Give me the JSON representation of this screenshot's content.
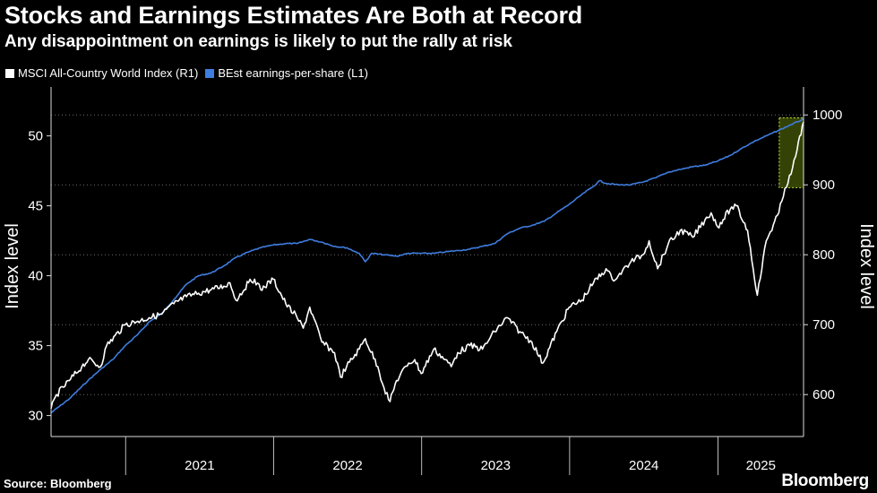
{
  "title": "Stocks and Earnings Estimates Are Both at Record",
  "subtitle": "Any disappointment on earnings is likely to put the rally at risk",
  "source": "Source: Bloomberg",
  "brand": "Bloomberg",
  "colors": {
    "background": "#000000",
    "msci": "#ffffff",
    "eps": "#3f7de0",
    "highlight_fill": "#3a4a06",
    "highlight_border": "#c6e33c",
    "grid": "#6d6d6d"
  },
  "chart_data": {
    "type": "line",
    "x_range": [
      "2020-07-01",
      "2025-07-31"
    ],
    "x_ticks": [
      "2021",
      "2022",
      "2023",
      "2024",
      "2025"
    ],
    "left_axis": {
      "label": "Index level",
      "ticks": [
        30,
        35,
        40,
        45,
        50
      ],
      "range": [
        28.5,
        53.5
      ]
    },
    "right_axis": {
      "label": "Index level",
      "ticks": [
        600,
        700,
        800,
        900,
        1000
      ],
      "range": [
        540,
        1040
      ]
    },
    "legend_position": "top-left",
    "series": [
      {
        "name": "MSCI All-Country World Index (R1)",
        "axis": "right",
        "color": "#ffffff",
        "points": [
          [
            "2020-07-01",
            580
          ],
          [
            "2020-07-15",
            600
          ],
          [
            "2020-08-15",
            620
          ],
          [
            "2020-09-15",
            640
          ],
          [
            "2020-10-01",
            650
          ],
          [
            "2020-10-31",
            640
          ],
          [
            "2020-11-15",
            670
          ],
          [
            "2020-12-31",
            700
          ],
          [
            "2021-01-31",
            705
          ],
          [
            "2021-02-28",
            710
          ],
          [
            "2021-03-31",
            715
          ],
          [
            "2021-04-30",
            730
          ],
          [
            "2021-05-31",
            740
          ],
          [
            "2021-06-30",
            745
          ],
          [
            "2021-07-31",
            750
          ],
          [
            "2021-08-31",
            755
          ],
          [
            "2021-09-15",
            760
          ],
          [
            "2021-09-30",
            735
          ],
          [
            "2021-10-31",
            760
          ],
          [
            "2021-11-15",
            765
          ],
          [
            "2021-11-30",
            750
          ],
          [
            "2021-12-31",
            765
          ],
          [
            "2022-01-31",
            730
          ],
          [
            "2022-02-28",
            710
          ],
          [
            "2022-03-15",
            695
          ],
          [
            "2022-03-31",
            725
          ],
          [
            "2022-04-30",
            675
          ],
          [
            "2022-05-31",
            660
          ],
          [
            "2022-06-15",
            625
          ],
          [
            "2022-06-30",
            640
          ],
          [
            "2022-07-31",
            665
          ],
          [
            "2022-08-15",
            680
          ],
          [
            "2022-09-15",
            640
          ],
          [
            "2022-09-30",
            610
          ],
          [
            "2022-10-15",
            590
          ],
          [
            "2022-10-31",
            620
          ],
          [
            "2022-11-30",
            645
          ],
          [
            "2022-12-15",
            650
          ],
          [
            "2022-12-31",
            630
          ],
          [
            "2023-01-31",
            665
          ],
          [
            "2023-02-28",
            650
          ],
          [
            "2023-03-15",
            640
          ],
          [
            "2023-03-31",
            660
          ],
          [
            "2023-04-30",
            670
          ],
          [
            "2023-05-31",
            665
          ],
          [
            "2023-06-30",
            690
          ],
          [
            "2023-07-31",
            710
          ],
          [
            "2023-08-31",
            690
          ],
          [
            "2023-09-30",
            675
          ],
          [
            "2023-10-27",
            645
          ],
          [
            "2023-11-30",
            690
          ],
          [
            "2023-12-31",
            725
          ],
          [
            "2024-01-31",
            735
          ],
          [
            "2024-02-29",
            760
          ],
          [
            "2024-03-31",
            780
          ],
          [
            "2024-04-15",
            765
          ],
          [
            "2024-04-30",
            770
          ],
          [
            "2024-05-31",
            790
          ],
          [
            "2024-06-30",
            800
          ],
          [
            "2024-07-15",
            820
          ],
          [
            "2024-08-05",
            780
          ],
          [
            "2024-08-31",
            815
          ],
          [
            "2024-09-30",
            835
          ],
          [
            "2024-10-31",
            825
          ],
          [
            "2024-11-30",
            850
          ],
          [
            "2024-12-15",
            860
          ],
          [
            "2024-12-31",
            840
          ],
          [
            "2025-01-31",
            865
          ],
          [
            "2025-02-15",
            870
          ],
          [
            "2025-03-15",
            835
          ],
          [
            "2025-04-08",
            742
          ],
          [
            "2025-04-30",
            820
          ],
          [
            "2025-05-31",
            860
          ],
          [
            "2025-06-15",
            895
          ],
          [
            "2025-06-30",
            915
          ],
          [
            "2025-07-15",
            950
          ],
          [
            "2025-07-31",
            990
          ]
        ]
      },
      {
        "name": "BEst earnings-per-share (L1)",
        "axis": "left",
        "color": "#3f7de0",
        "points": [
          [
            "2020-07-01",
            30.2
          ],
          [
            "2020-08-15",
            31.2
          ],
          [
            "2020-09-30",
            32.5
          ],
          [
            "2020-10-31",
            33.3
          ],
          [
            "2020-11-30",
            34.0
          ],
          [
            "2020-12-31",
            35.0
          ],
          [
            "2021-01-31",
            35.8
          ],
          [
            "2021-02-28",
            36.7
          ],
          [
            "2021-03-31",
            37.3
          ],
          [
            "2021-04-30",
            38.3
          ],
          [
            "2021-05-31",
            39.4
          ],
          [
            "2021-06-30",
            40.0
          ],
          [
            "2021-07-31",
            40.2
          ],
          [
            "2021-08-31",
            40.7
          ],
          [
            "2021-09-30",
            41.3
          ],
          [
            "2021-10-31",
            41.7
          ],
          [
            "2021-11-30",
            42.0
          ],
          [
            "2021-12-31",
            42.2
          ],
          [
            "2022-01-31",
            42.3
          ],
          [
            "2022-02-28",
            42.3
          ],
          [
            "2022-03-31",
            42.6
          ],
          [
            "2022-04-30",
            42.4
          ],
          [
            "2022-05-31",
            42.1
          ],
          [
            "2022-06-30",
            42.0
          ],
          [
            "2022-07-31",
            41.6
          ],
          [
            "2022-08-15",
            41.0
          ],
          [
            "2022-08-31",
            41.6
          ],
          [
            "2022-09-30",
            41.5
          ],
          [
            "2022-10-31",
            41.4
          ],
          [
            "2022-11-30",
            41.6
          ],
          [
            "2022-12-31",
            41.6
          ],
          [
            "2023-01-31",
            41.6
          ],
          [
            "2023-02-28",
            41.7
          ],
          [
            "2023-03-31",
            41.8
          ],
          [
            "2023-04-30",
            41.9
          ],
          [
            "2023-05-31",
            42.1
          ],
          [
            "2023-06-30",
            42.3
          ],
          [
            "2023-07-31",
            43.0
          ],
          [
            "2023-08-31",
            43.4
          ],
          [
            "2023-09-30",
            43.6
          ],
          [
            "2023-10-31",
            43.9
          ],
          [
            "2023-11-30",
            44.5
          ],
          [
            "2023-12-31",
            45.1
          ],
          [
            "2024-01-31",
            45.8
          ],
          [
            "2024-02-29",
            46.4
          ],
          [
            "2024-03-15",
            46.8
          ],
          [
            "2024-03-31",
            46.6
          ],
          [
            "2024-04-30",
            46.5
          ],
          [
            "2024-05-31",
            46.5
          ],
          [
            "2024-06-30",
            46.7
          ],
          [
            "2024-07-31",
            47.0
          ],
          [
            "2024-08-31",
            47.4
          ],
          [
            "2024-09-30",
            47.6
          ],
          [
            "2024-10-31",
            47.8
          ],
          [
            "2024-11-30",
            47.9
          ],
          [
            "2024-12-31",
            48.2
          ],
          [
            "2025-01-31",
            48.6
          ],
          [
            "2025-02-28",
            49.1
          ],
          [
            "2025-03-31",
            49.6
          ],
          [
            "2025-04-30",
            50.0
          ],
          [
            "2025-05-31",
            50.4
          ],
          [
            "2025-06-30",
            50.8
          ],
          [
            "2025-07-31",
            51.2
          ]
        ]
      }
    ],
    "highlight": {
      "x": [
        "2025-06-01",
        "2025-07-31"
      ],
      "left_y": [
        46.3,
        51.3
      ]
    }
  }
}
